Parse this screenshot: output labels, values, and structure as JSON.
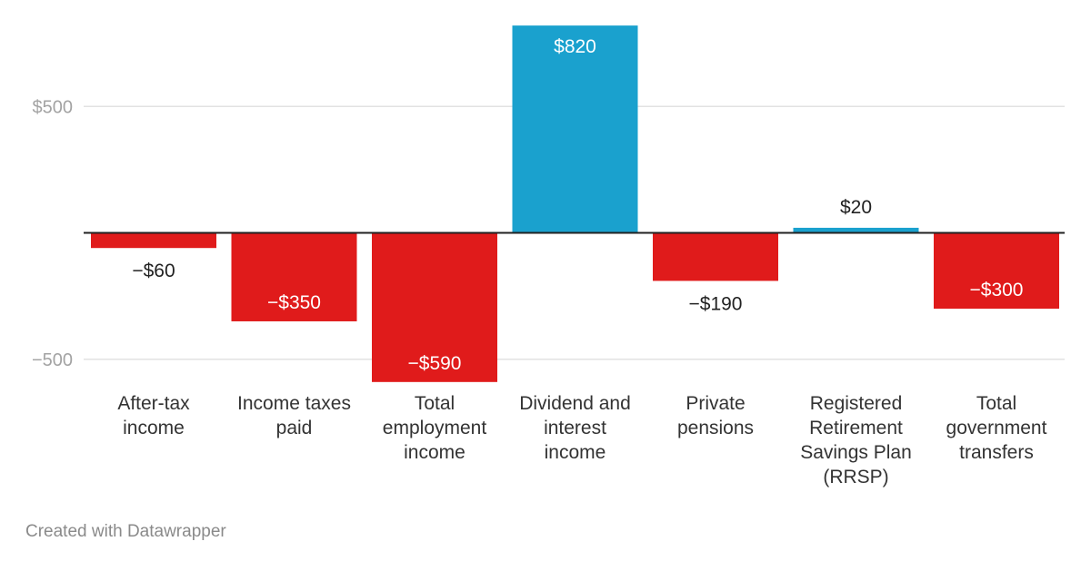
{
  "chart_data": {
    "type": "bar",
    "categories": [
      [
        "After-tax",
        "income"
      ],
      [
        "Income taxes",
        "paid"
      ],
      [
        "Total",
        "employment",
        "income"
      ],
      [
        "Dividend and",
        "interest",
        "income"
      ],
      [
        "Private",
        "pensions"
      ],
      [
        "Registered",
        "Retirement",
        "Savings Plan",
        "(RRSP)"
      ],
      [
        "Total",
        "government",
        "transfers"
      ]
    ],
    "values": [
      -60,
      -350,
      -590,
      820,
      -190,
      20,
      -300
    ],
    "value_labels": [
      "−$60",
      "−$350",
      "−$590",
      "$820",
      "−$190",
      "$20",
      "−$300"
    ],
    "y_ticks": [
      {
        "value": 500,
        "label": "$500"
      },
      {
        "value": -500,
        "label": "−500"
      }
    ],
    "ylim": [
      -590,
      820
    ],
    "grid": true,
    "colors": {
      "positive": "#1aa1ce",
      "negative": "#e01b1b",
      "zero_line": "#222222",
      "grid": "#e2e2e2"
    }
  },
  "footer": {
    "credit": "Created with Datawrapper"
  }
}
